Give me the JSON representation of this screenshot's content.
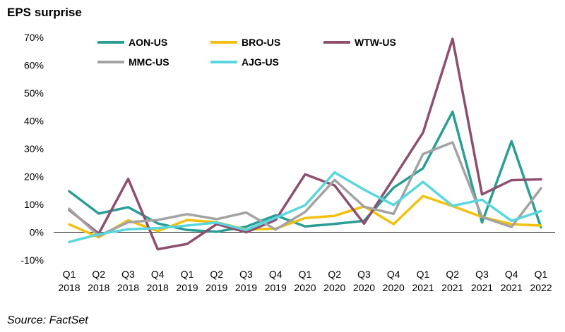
{
  "chart_data": {
    "type": "line",
    "title": "EPS surprise",
    "source": "Source: FactSet",
    "xlabel": "",
    "ylabel": "",
    "ylim": [
      -10,
      70
    ],
    "yticks": [
      -10,
      0,
      10,
      20,
      30,
      40,
      50,
      60,
      70
    ],
    "ytick_labels": [
      "-10%",
      "0%",
      "10%",
      "20%",
      "30%",
      "40%",
      "50%",
      "60%",
      "70%"
    ],
    "categories": [
      {
        "q": "Q1",
        "year": "2018"
      },
      {
        "q": "Q2",
        "year": "2018"
      },
      {
        "q": "Q3",
        "year": "2018"
      },
      {
        "q": "Q4",
        "year": "2018"
      },
      {
        "q": "Q1",
        "year": "2019"
      },
      {
        "q": "Q2",
        "year": "2019"
      },
      {
        "q": "Q3",
        "year": "2019"
      },
      {
        "q": "Q4",
        "year": "2019"
      },
      {
        "q": "Q1",
        "year": "2020"
      },
      {
        "q": "Q2",
        "year": "2020"
      },
      {
        "q": "Q3",
        "year": "2020"
      },
      {
        "q": "Q4",
        "year": "2020"
      },
      {
        "q": "Q1",
        "year": "2021"
      },
      {
        "q": "Q2",
        "year": "2021"
      },
      {
        "q": "Q3",
        "year": "2021"
      },
      {
        "q": "Q4",
        "year": "2021"
      },
      {
        "q": "Q1",
        "year": "2022"
      }
    ],
    "grid": false,
    "legend_position": "top",
    "series": [
      {
        "name": "AON-US",
        "color": "#2A9D96",
        "values": [
          14.7,
          6.7,
          9.0,
          3.2,
          0.8,
          0.2,
          2.0,
          6.1,
          2.1,
          3.0,
          4.1,
          16.0,
          23.0,
          43.3,
          3.5,
          32.7,
          1.8
        ]
      },
      {
        "name": "BRO-US",
        "color": "#F2C00F",
        "values": [
          2.8,
          -1.8,
          4.3,
          0.4,
          4.4,
          3.6,
          1.0,
          1.3,
          5.1,
          5.9,
          9.3,
          2.9,
          13.0,
          9.4,
          5.5,
          2.9,
          2.4
        ]
      },
      {
        "name": "WTW-US",
        "color": "#8E4E6E",
        "values": [
          8.0,
          -0.5,
          19.2,
          -6.1,
          -4.2,
          2.9,
          0.0,
          4.4,
          20.8,
          16.8,
          3.1,
          19.4,
          35.8,
          69.5,
          13.6,
          18.7,
          19.0
        ]
      },
      {
        "name": "MMC-US",
        "color": "#A3A3A3",
        "values": [
          8.4,
          -1.3,
          3.6,
          4.4,
          6.5,
          4.7,
          7.1,
          1.0,
          7.3,
          18.8,
          9.2,
          6.6,
          28.1,
          32.3,
          5.5,
          1.9,
          15.8
        ]
      },
      {
        "name": "AJG-US",
        "color": "#5AD6DF",
        "values": [
          -3.5,
          -0.7,
          1.1,
          1.5,
          2.4,
          3.5,
          0.8,
          5.2,
          9.7,
          21.5,
          15.3,
          9.8,
          18.1,
          9.5,
          11.7,
          4.1,
          7.6
        ]
      }
    ]
  }
}
